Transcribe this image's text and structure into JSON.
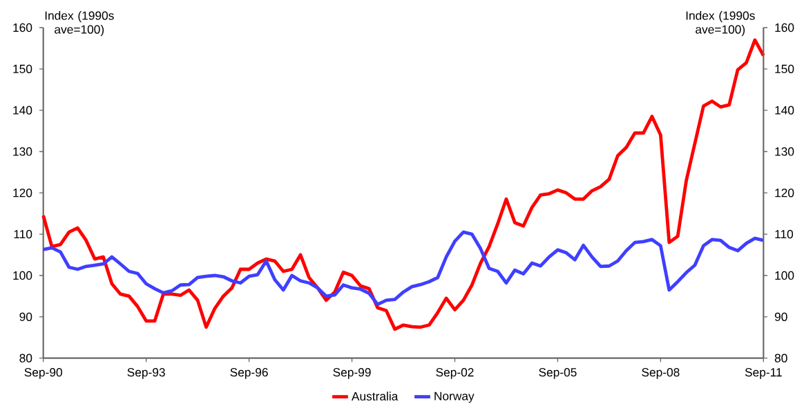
{
  "chart_data": {
    "type": "line",
    "ylabel": "Index (1990s ave=100)",
    "y2label": "Index (1990s ave=100)",
    "x": [
      "1990-09",
      "1990-12",
      "1991-03",
      "1991-06",
      "1991-09",
      "1991-12",
      "1992-03",
      "1992-06",
      "1992-09",
      "1992-12",
      "1993-03",
      "1993-06",
      "1993-09",
      "1993-12",
      "1994-03",
      "1994-06",
      "1994-09",
      "1994-12",
      "1995-03",
      "1995-06",
      "1995-09",
      "1995-12",
      "1996-03",
      "1996-06",
      "1996-09",
      "1996-12",
      "1997-03",
      "1997-06",
      "1997-09",
      "1997-12",
      "1998-03",
      "1998-06",
      "1998-09",
      "1998-12",
      "1999-03",
      "1999-06",
      "1999-09",
      "1999-12",
      "2000-03",
      "2000-06",
      "2000-09",
      "2000-12",
      "2001-03",
      "2001-06",
      "2001-09",
      "2001-12",
      "2002-03",
      "2002-06",
      "2002-09",
      "2002-12",
      "2003-03",
      "2003-06",
      "2003-09",
      "2003-12",
      "2004-03",
      "2004-06",
      "2004-09",
      "2004-12",
      "2005-03",
      "2005-06",
      "2005-09",
      "2005-12",
      "2006-03",
      "2006-06",
      "2006-09",
      "2006-12",
      "2007-03",
      "2007-06",
      "2007-09",
      "2007-12",
      "2008-03",
      "2008-06",
      "2008-09",
      "2008-12",
      "2009-03",
      "2009-06",
      "2009-09",
      "2009-12",
      "2010-03",
      "2010-06",
      "2010-09",
      "2010-12",
      "2011-03",
      "2011-06",
      "2011-09"
    ],
    "series": [
      {
        "name": "Australia",
        "color": "#ff0000",
        "values": [
          114.5,
          107,
          107.5,
          110.5,
          111.5,
          108.5,
          104,
          104.5,
          98,
          95.5,
          95,
          92.5,
          89,
          89,
          95.5,
          95.5,
          95.2,
          96.5,
          94,
          87.5,
          92,
          95,
          97,
          101.5,
          101.5,
          103,
          104,
          103.5,
          101,
          101.5,
          105,
          99.5,
          97,
          94,
          96,
          100.8,
          100,
          97.5,
          96.8,
          92.2,
          91.5,
          87,
          88,
          87.6,
          87.5,
          88,
          91,
          94.5,
          91.7,
          94,
          97.7,
          103,
          107,
          112.5,
          118.5,
          112.8,
          112,
          116.5,
          119.5,
          119.8,
          120.7,
          120,
          118.5,
          118.5,
          120.5,
          121.5,
          123.3,
          129,
          131,
          134.5,
          134.5,
          138.5,
          134,
          108,
          109.5,
          123,
          132,
          141,
          142.2,
          140.8,
          141.3,
          149.8,
          151.5,
          157,
          153.2
        ]
      },
      {
        "name": "Norway",
        "color": "#3f3fff",
        "values": [
          106.3,
          106.7,
          105.7,
          102,
          101.5,
          102.2,
          102.5,
          102.8,
          104.5,
          102.8,
          101,
          100.5,
          98,
          96.8,
          95.8,
          96.3,
          97.7,
          97.8,
          99.5,
          99.8,
          100,
          99.7,
          98.7,
          98.2,
          99.8,
          100.2,
          103.5,
          99,
          96.5,
          100,
          98.7,
          98.2,
          97,
          95,
          95.3,
          97.7,
          97,
          96.7,
          95.7,
          93,
          94,
          94.2,
          96,
          97.3,
          97.8,
          98.5,
          99.5,
          104.5,
          108.3,
          110.5,
          110,
          106.5,
          101.7,
          101,
          98.2,
          101.3,
          100.4,
          103,
          102.3,
          104.5,
          106.2,
          105.5,
          103.8,
          107.3,
          104.5,
          102.2,
          102.3,
          103.5,
          106,
          108,
          108.2,
          108.7,
          107.2,
          96.5,
          98.5,
          100.7,
          102.5,
          107.2,
          108.7,
          108.5,
          106.8,
          106,
          107.8,
          109,
          108.5
        ]
      }
    ],
    "xlim": [
      "1990-09",
      "2011-09"
    ],
    "xticks": [
      {
        "value": "1990-09",
        "label": "Sep-90"
      },
      {
        "value": "1993-09",
        "label": "Sep-93"
      },
      {
        "value": "1996-09",
        "label": "Sep-96"
      },
      {
        "value": "1999-09",
        "label": "Sep-99"
      },
      {
        "value": "2002-09",
        "label": "Sep-02"
      },
      {
        "value": "2005-09",
        "label": "Sep-05"
      },
      {
        "value": "2008-09",
        "label": "Sep-08"
      },
      {
        "value": "2011-09",
        "label": "Sep-11"
      }
    ],
    "ylim": [
      80,
      160
    ],
    "yticks": [
      80,
      90,
      100,
      110,
      120,
      130,
      140,
      150,
      160
    ],
    "y2lim": [
      80,
      160
    ],
    "y2ticks": [
      80,
      90,
      100,
      110,
      120,
      130,
      140,
      150,
      160
    ],
    "legend": "bottom"
  }
}
